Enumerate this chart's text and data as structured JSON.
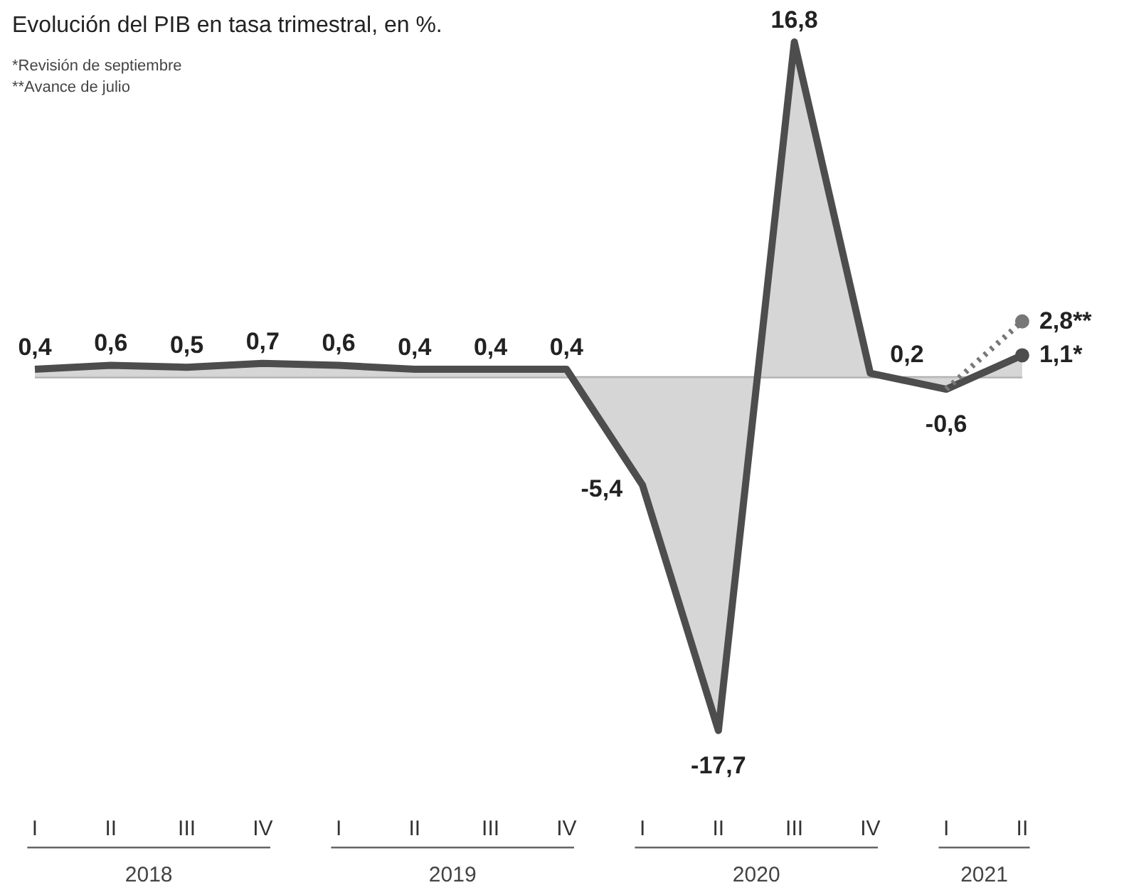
{
  "chart_data": {
    "type": "area",
    "subtitle": "Evolución del PIB en tasa trimestral, en %.",
    "categories": [
      "I",
      "II",
      "III",
      "IV",
      "I",
      "II",
      "III",
      "IV",
      "I",
      "II",
      "III",
      "IV",
      "I",
      "II"
    ],
    "series": [
      {
        "color": "#4d4d4d",
        "values": [
          0.4,
          0.6,
          0.5,
          0.7,
          0.6,
          0.4,
          0.4,
          0.4,
          -5.4,
          -17.7,
          16.8,
          0.2,
          -0.6,
          1.1
        ],
        "value_labels": [
          "0,4",
          "0,6",
          "0,5",
          "0,7",
          "0,6",
          "0,4",
          "0,4",
          "0,4",
          "-5,4",
          "-17,7",
          "16,8",
          "0,2",
          "-0,6",
          "1,1*"
        ]
      },
      {
        "type": "line",
        "line_style": "dotted",
        "color": "#777777",
        "values": [
          null,
          null,
          null,
          null,
          null,
          null,
          null,
          null,
          null,
          null,
          null,
          null,
          -0.6,
          2.8
        ],
        "value_labels": [
          null,
          null,
          null,
          null,
          null,
          null,
          null,
          null,
          null,
          null,
          null,
          null,
          null,
          "2,8**"
        ]
      }
    ],
    "annotations": [
      "*Revisión de septiembre",
      "**Avance de julio",
      "2018",
      "2019",
      "2020",
      "2021"
    ],
    "grid": false
  }
}
